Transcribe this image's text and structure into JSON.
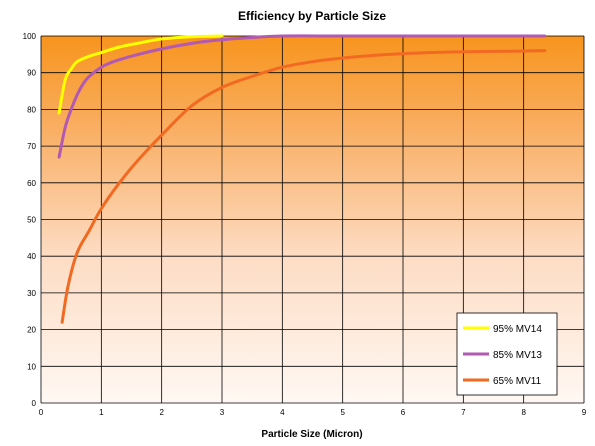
{
  "chart_data": {
    "type": "line",
    "title": "Efficiency by Particle Size",
    "xlabel": "Particle Size (Micron)",
    "ylabel": "",
    "xlim": [
      0,
      9
    ],
    "ylim": [
      0,
      100
    ],
    "x_ticks": [
      0,
      1,
      2,
      3,
      4,
      5,
      6,
      7,
      8,
      9
    ],
    "y_ticks": [
      0,
      10,
      20,
      30,
      40,
      50,
      60,
      70,
      80,
      90,
      100
    ],
    "grid": true,
    "legend_position": "bottom-right",
    "series": [
      {
        "name": "95% MV14",
        "color": "#FFFF00",
        "x": [
          0.3,
          0.4,
          0.5,
          0.6,
          0.8,
          1.0,
          1.3,
          1.6,
          2.0,
          2.5,
          3.0
        ],
        "y": [
          79,
          88,
          91,
          93,
          94.5,
          95.5,
          97,
          98,
          99.2,
          99.8,
          100
        ]
      },
      {
        "name": "85% MV13",
        "color": "#B259B2",
        "x": [
          0.3,
          0.4,
          0.5,
          0.6,
          0.7,
          0.8,
          1.0,
          1.2,
          1.5,
          2.0,
          2.5,
          3.0,
          3.5,
          4.0,
          5.0,
          6.0,
          7.0,
          8.35
        ],
        "y": [
          67,
          75,
          80,
          84,
          87,
          89,
          91.5,
          93,
          94.5,
          96.5,
          98,
          99,
          99.6,
          100,
          100,
          100,
          100,
          100
        ]
      },
      {
        "name": "65% MV11",
        "color": "#F26A22",
        "x": [
          0.35,
          0.45,
          0.6,
          0.8,
          1.0,
          1.3,
          1.6,
          2.0,
          2.5,
          3.0,
          3.5,
          4.0,
          4.5,
          5.0,
          5.5,
          6.0,
          6.5,
          7.0,
          7.5,
          8.35
        ],
        "y": [
          22,
          32,
          41,
          47,
          53,
          60,
          66,
          73,
          81,
          86,
          89,
          91.5,
          93,
          94,
          94.7,
          95.2,
          95.5,
          95.7,
          95.8,
          96
        ]
      }
    ]
  }
}
